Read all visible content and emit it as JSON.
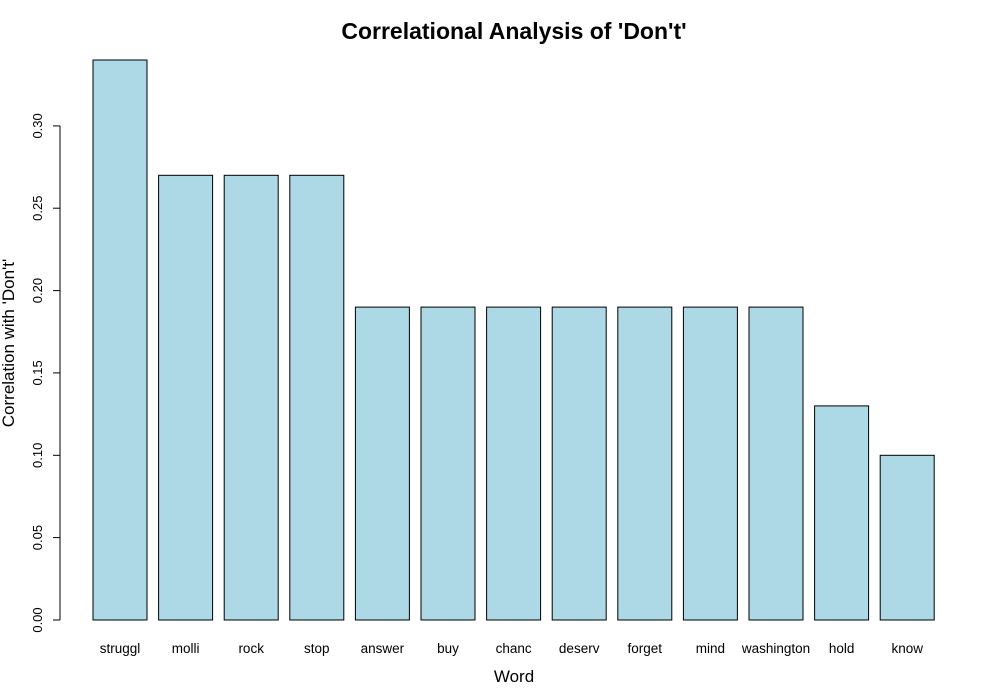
{
  "chart_data": {
    "type": "bar",
    "title": "Correlational Analysis of 'Don't'",
    "xlabel": "Word",
    "ylabel": "Correlation with 'Don't'",
    "categories": [
      "struggl",
      "molli",
      "rock",
      "stop",
      "answer",
      "buy",
      "chanc",
      "deserv",
      "forget",
      "mind",
      "washington",
      "hold",
      "know"
    ],
    "values": [
      0.34,
      0.27,
      0.27,
      0.27,
      0.19,
      0.19,
      0.19,
      0.19,
      0.19,
      0.19,
      0.19,
      0.13,
      0.1
    ],
    "ylim": [
      0,
      0.34
    ],
    "yticks": [
      "0.00",
      "0.05",
      "0.10",
      "0.15",
      "0.20",
      "0.25",
      "0.30"
    ],
    "bar_color": "#add8e6",
    "grid": false
  }
}
